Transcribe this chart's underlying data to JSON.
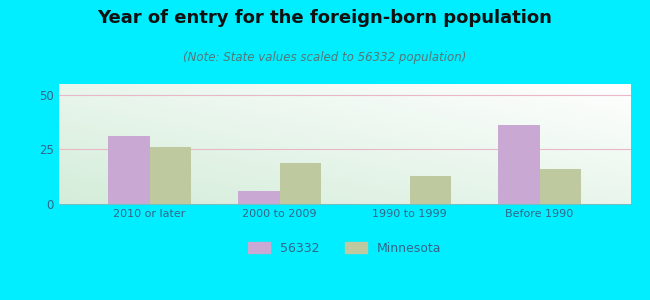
{
  "title": "Year of entry for the foreign-born population",
  "subtitle": "(Note: State values scaled to 56332 population)",
  "categories": [
    "2010 or later",
    "2000 to 2009",
    "1990 to 1999",
    "Before 1990"
  ],
  "values_56332": [
    31,
    6,
    0,
    36
  ],
  "values_minnesota": [
    26,
    19,
    13,
    16
  ],
  "color_56332": "#c9a8d4",
  "color_minnesota": "#bec9a0",
  "background_outer": "#00eeff",
  "ylim": [
    0,
    55
  ],
  "yticks": [
    0,
    25,
    50
  ],
  "bar_width": 0.32,
  "legend_label_56332": "56332",
  "legend_label_minnesota": "Minnesota",
  "grid_color": "#e8b8c8",
  "title_fontsize": 13,
  "subtitle_fontsize": 8.5,
  "title_color": "#111111",
  "subtitle_color": "#557777",
  "tick_color": "#336688",
  "bg_top_color": "#f0faf0",
  "bg_bottom_color": "#d8f0d8"
}
